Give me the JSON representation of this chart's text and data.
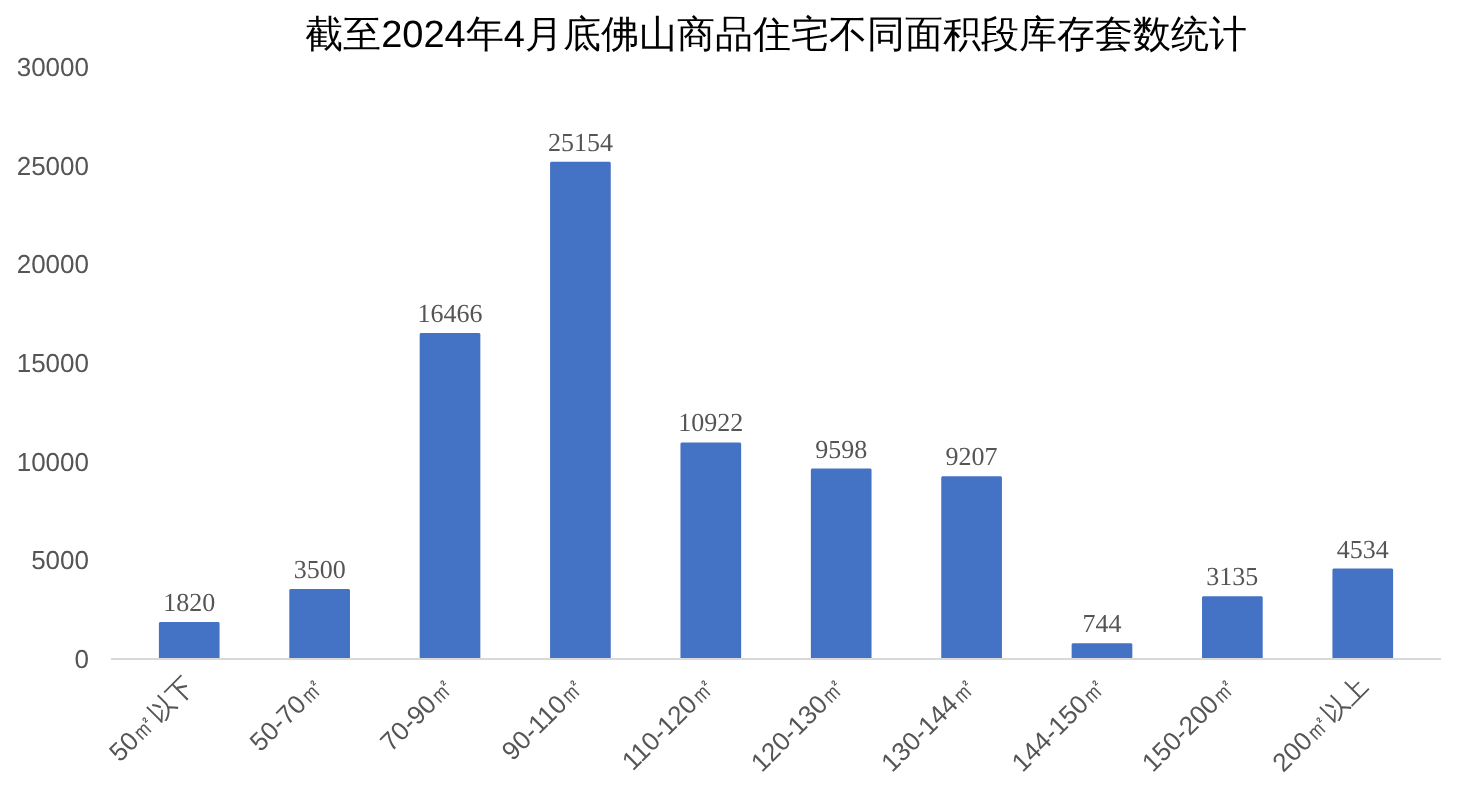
{
  "chart_data": {
    "type": "bar",
    "title": "截至2024年4月底佛山商品住宅不同面积段库存套数统计",
    "categories": [
      "50㎡以下",
      "50-70㎡",
      "70-90㎡",
      "90-110㎡",
      "110-120㎡",
      "120-130㎡",
      "130-144㎡",
      "144-150㎡",
      "150-200㎡",
      "200㎡以上"
    ],
    "values": [
      1820,
      3500,
      16466,
      25154,
      10922,
      9598,
      9207,
      744,
      3135,
      4534
    ],
    "color": "#4472c4",
    "ylim": [
      0,
      30000
    ],
    "yticks": [
      0,
      5000,
      10000,
      15000,
      20000,
      25000,
      30000
    ],
    "data_labels": true,
    "grid": false
  }
}
